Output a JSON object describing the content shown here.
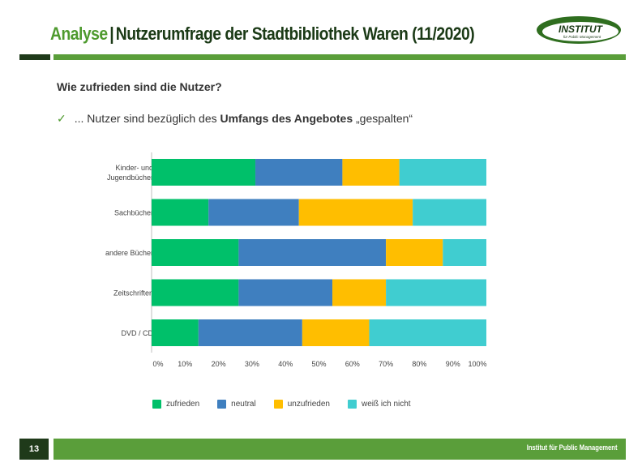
{
  "header": {
    "title_accent": "Analyse",
    "title_separator": "|",
    "title_main": "Nutzerumfrage der Stadtbibliothek Waren (11/2020)",
    "logo_text": "INSTITUT",
    "logo_subtext": "für Public Management"
  },
  "content": {
    "question": "Wie zufrieden sind die Nutzer?",
    "bullet_prefix": "... Nutzer sind bezüglich des ",
    "bullet_bold": "Umfangs des Angebotes",
    "bullet_suffix": " „gespalten“"
  },
  "chart_data": {
    "type": "bar",
    "orientation": "horizontal",
    "stacked": true,
    "percent": true,
    "categories": [
      "Kinder- und Jugendbücher",
      "Sachbücher",
      "andere Bücher",
      "Zeitschriften",
      "DVD / CD"
    ],
    "category_label_lines": [
      [
        "Kinder- und",
        "Jugendbücher"
      ],
      [
        "Sachbücher"
      ],
      [
        "andere Bücher"
      ],
      [
        "Zeitschriften"
      ],
      [
        "DVD / CD"
      ]
    ],
    "series": [
      {
        "name": "zufrieden",
        "color": "#00c06a",
        "values": [
          31,
          17,
          26,
          26,
          14
        ]
      },
      {
        "name": "neutral",
        "color": "#3f7fbf",
        "values": [
          26,
          27,
          44,
          28,
          31
        ]
      },
      {
        "name": "unzufrieden",
        "color": "#ffbe00",
        "values": [
          17,
          34,
          17,
          16,
          20
        ]
      },
      {
        "name": "weiß ich nicht",
        "color": "#40cdd0",
        "values": [
          26,
          22,
          13,
          30,
          35
        ]
      }
    ],
    "xlim": [
      0,
      100
    ],
    "x_ticks": [
      "0%",
      "10%",
      "20%",
      "30%",
      "40%",
      "50%",
      "60%",
      "70%",
      "80%",
      "90%",
      "100%"
    ],
    "grid": false,
    "legend_position": "bottom"
  },
  "footer": {
    "page_number": "13",
    "org_name": "Institut für Public Management"
  }
}
